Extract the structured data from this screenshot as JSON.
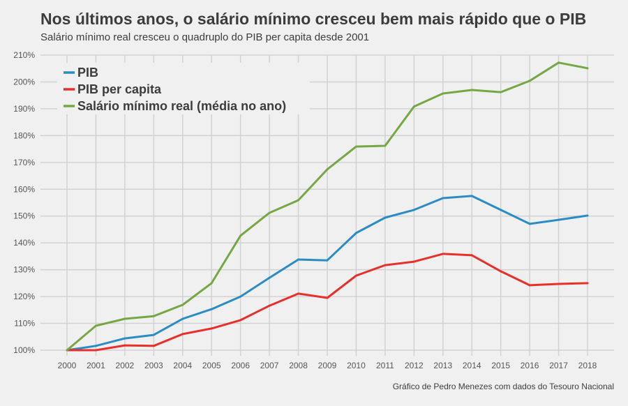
{
  "chart_data": {
    "type": "line",
    "title": "Nos últimos anos, o salário mínimo cresceu bem mais rápido que o PIB",
    "subtitle": "Salário mínimo real cresceu o quadruplo do PIB per capita desde 2001",
    "caption": "Gráfico de Pedro Menezes com dados do Tesouro Nacional",
    "xlabel": "",
    "ylabel": "",
    "x": [
      2000,
      2001,
      2002,
      2003,
      2004,
      2005,
      2006,
      2007,
      2008,
      2009,
      2010,
      2011,
      2012,
      2013,
      2014,
      2015,
      2016,
      2017,
      2018
    ],
    "ylim": [
      100,
      210
    ],
    "yticks": [
      "100%",
      "110%",
      "120%",
      "130%",
      "140%",
      "150%",
      "160%",
      "170%",
      "180%",
      "190%",
      "200%",
      "210%"
    ],
    "grid": true,
    "legend_position": "top-left",
    "series": [
      {
        "name": "PIB",
        "color": "#2b8cc4",
        "values": [
          100,
          101.6,
          104.4,
          105.7,
          111.7,
          115.3,
          120,
          127,
          133.8,
          133.5,
          143.7,
          149.4,
          152.3,
          156.7,
          157.5,
          152.3,
          147.1,
          148.6,
          150.2
        ]
      },
      {
        "name": "PIB per capita",
        "color": "#e8302a",
        "values": [
          100,
          100,
          101.8,
          101.6,
          106,
          108.1,
          111.2,
          116.6,
          121.1,
          119.5,
          127.8,
          131.7,
          133,
          135.9,
          135.4,
          129.4,
          124.2,
          124.7,
          125
        ]
      },
      {
        "name": "Salário mínimo real (média no ano)",
        "color": "#77a745",
        "values": [
          100,
          109.1,
          111.7,
          112.7,
          116.9,
          125,
          142.7,
          151.2,
          155.9,
          167.4,
          175.9,
          176.2,
          190.8,
          195.7,
          197,
          196.2,
          200.4,
          207.2,
          205.1
        ]
      }
    ]
  }
}
